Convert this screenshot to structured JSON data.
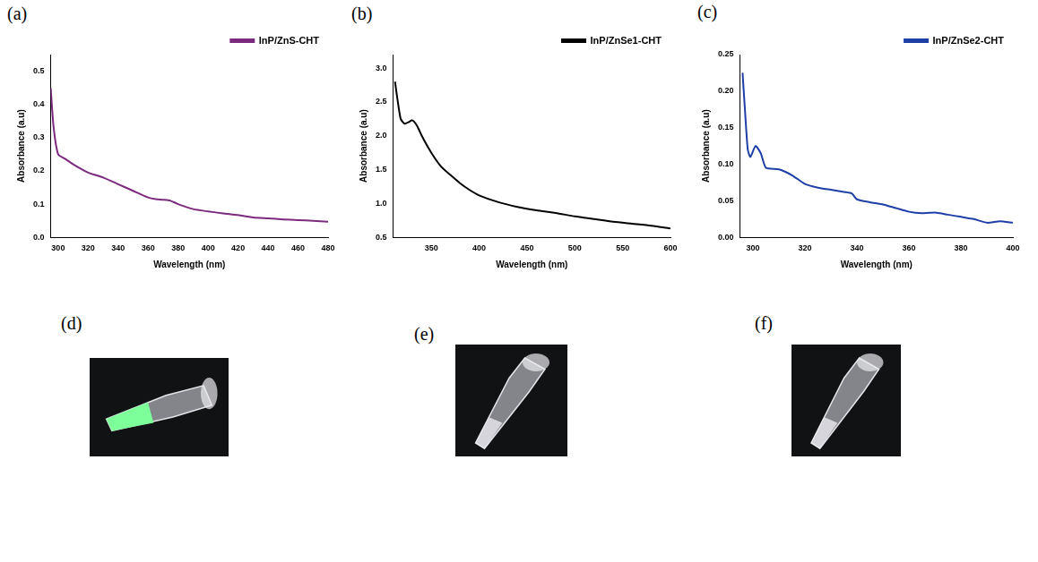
{
  "chart_data": [
    {
      "panel": "(a)",
      "type": "line",
      "x_label": "Wavelength (nm)",
      "y_label": "Absorbance (a.u)",
      "x": [
        295,
        297,
        300,
        305,
        310,
        320,
        330,
        340,
        350,
        360,
        365,
        370,
        375,
        380,
        390,
        400,
        410,
        420,
        430,
        440,
        450,
        460,
        470,
        480
      ],
      "series": [
        {
          "name": "InP/ZnS-CHT",
          "color": "#7b2a7e",
          "values": [
            0.45,
            0.33,
            0.25,
            0.235,
            0.22,
            0.195,
            0.18,
            0.16,
            0.14,
            0.12,
            0.115,
            0.113,
            0.11,
            0.1,
            0.085,
            0.078,
            0.072,
            0.067,
            0.06,
            0.057,
            0.054,
            0.052,
            0.05,
            0.047
          ]
        }
      ],
      "xlim": [
        295,
        480
      ],
      "xticks": [
        300,
        320,
        340,
        360,
        380,
        400,
        420,
        440,
        460,
        480
      ],
      "ylim": [
        0,
        0.55
      ],
      "yticks": [
        {
          "value": 0,
          "label": "0.0"
        },
        0.1,
        0.2,
        0.3,
        0.4,
        0.5
      ],
      "legend": "top-right",
      "grid": false
    },
    {
      "panel": "(b)",
      "type": "line",
      "x_label": "Wavelength (nm)",
      "y_label": "Absorbance (a.u)",
      "x": [
        312,
        315,
        318,
        322,
        326,
        330,
        335,
        340,
        350,
        360,
        370,
        380,
        390,
        400,
        420,
        440,
        460,
        480,
        500,
        520,
        540,
        560,
        580,
        600
      ],
      "series": [
        {
          "name": "InP/ZnSe1-CHT",
          "color": "#000000",
          "values": [
            2.8,
            2.5,
            2.25,
            2.18,
            2.2,
            2.23,
            2.15,
            2.0,
            1.75,
            1.55,
            1.42,
            1.3,
            1.2,
            1.12,
            1.02,
            0.95,
            0.9,
            0.86,
            0.81,
            0.77,
            0.73,
            0.7,
            0.67,
            0.63
          ]
        }
      ],
      "xlim": [
        310,
        600
      ],
      "xticks": [
        350,
        400,
        450,
        500,
        550,
        600
      ],
      "ylim": [
        0.5,
        3.2
      ],
      "yticks": [
        0.5,
        {
          "value": 1,
          "label": "1.0"
        },
        1.5,
        {
          "value": 2,
          "label": "2.0"
        },
        2.5,
        {
          "value": 3,
          "label": "3.0"
        }
      ],
      "legend": "top-right",
      "grid": false
    },
    {
      "panel": "(c)",
      "type": "line",
      "x_label": "Wavelength (nm)",
      "y_label": "Absorbance (a.u)",
      "x": [
        296,
        297,
        298,
        299,
        301,
        303,
        305,
        310,
        315,
        320,
        325,
        330,
        335,
        338,
        340,
        345,
        350,
        355,
        360,
        365,
        370,
        372,
        375,
        380,
        385,
        390,
        395,
        400
      ],
      "series": [
        {
          "name": "InP/ZnSe2-CHT",
          "color": "#1f3fa8",
          "values": [
            0.225,
            0.17,
            0.12,
            0.11,
            0.125,
            0.115,
            0.095,
            0.093,
            0.085,
            0.073,
            0.068,
            0.065,
            0.062,
            0.06,
            0.052,
            0.048,
            0.045,
            0.04,
            0.035,
            0.033,
            0.034,
            0.033,
            0.031,
            0.028,
            0.025,
            0.02,
            0.022,
            0.02
          ]
        }
      ],
      "xlim": [
        295,
        400
      ],
      "xticks": [
        300,
        320,
        340,
        360,
        380,
        400
      ],
      "ylim": [
        0,
        0.25
      ],
      "yticks": [
        {
          "value": 0,
          "label": "0.00"
        },
        0.05,
        {
          "value": 0.1,
          "label": "0.10"
        },
        0.15,
        {
          "value": 0.2,
          "label": "0.20"
        },
        0.25
      ],
      "legend": "top-right",
      "grid": false
    }
  ],
  "photos": [
    {
      "panel": "(d)",
      "glow": "#7dff9a"
    },
    {
      "panel": "(e)"
    },
    {
      "panel": "(f)"
    }
  ]
}
